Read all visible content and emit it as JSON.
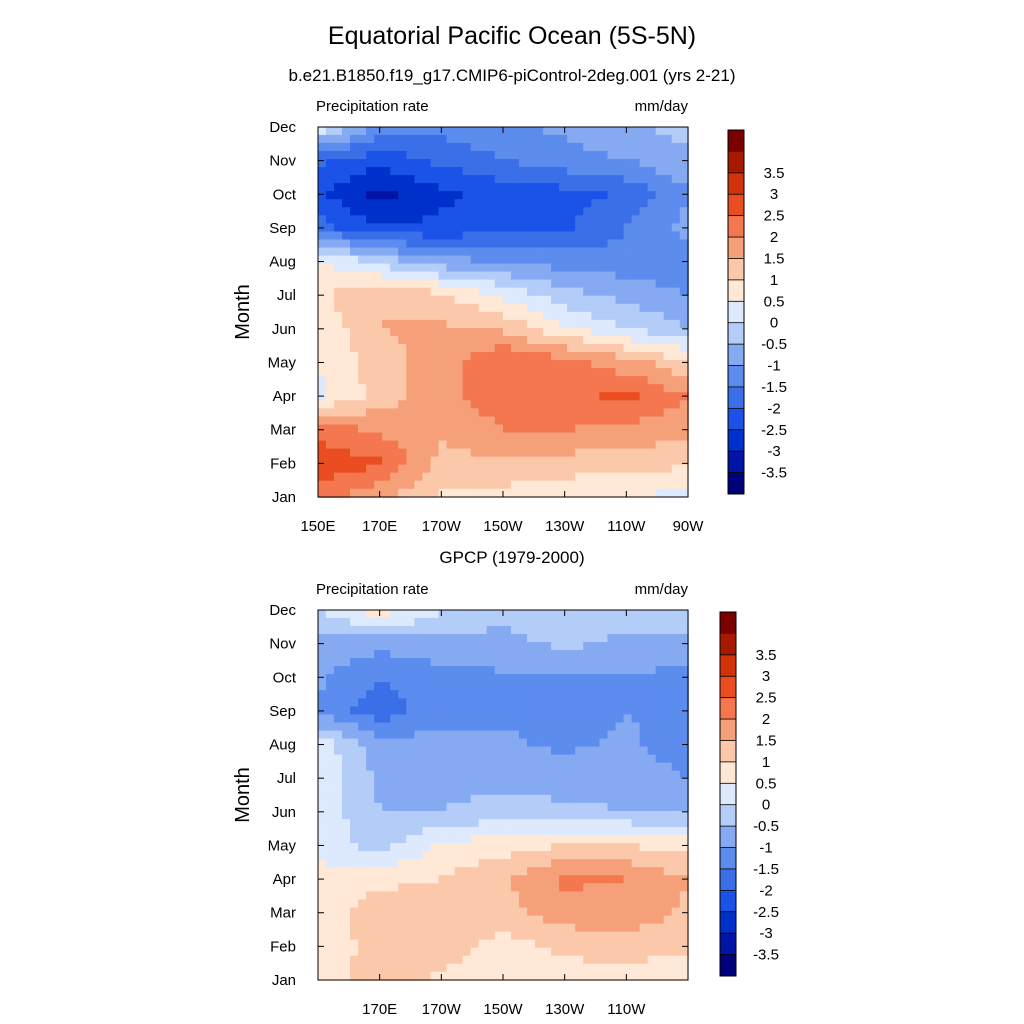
{
  "figure": {
    "title": "Equatorial Pacific Ocean (5S-5N)"
  },
  "chart_data": [
    {
      "type": "heatmap",
      "title": "b.e21.B1850.f19_g17.CMIP6-piControl-2deg.001 (yrs 2-21)",
      "left_label": "Precipitation rate",
      "right_label": "mm/day",
      "ylabel": "Month",
      "xlabel": "",
      "x_ticks": [
        "150E",
        "170E",
        "170W",
        "150W",
        "130W",
        "110W",
        "90W"
      ],
      "y_ticks": [
        "Jan",
        "Feb",
        "Mar",
        "Apr",
        "May",
        "Jun",
        "Jul",
        "Aug",
        "Sep",
        "Oct",
        "Nov",
        "Dec"
      ],
      "x_range": [
        150,
        270
      ],
      "colorbar": {
        "labels": [
          "-3.5",
          "-3",
          "-2.5",
          "-2",
          "-1.5",
          "-1",
          "-0.5",
          "0",
          "0.5",
          "1",
          "1.5",
          "2",
          "2.5",
          "3",
          "3.5"
        ],
        "levels": [
          -3.5,
          -3,
          -2.5,
          -2,
          -1.5,
          -1,
          -0.5,
          0,
          0.5,
          1,
          1.5,
          2,
          2.5,
          3,
          3.5
        ],
        "colors": [
          "#00007a",
          "#0015a5",
          "#0030cc",
          "#1b52e8",
          "#3a6fe8",
          "#5b8cee",
          "#86aaf2",
          "#b3ccf8",
          "#dde9fc",
          "#ffe8d6",
          "#fbc9aa",
          "#f6a07a",
          "#f4774f",
          "#ea4d20",
          "#d23308",
          "#a81a00",
          "#7a0000"
        ]
      },
      "months": [
        "Jan",
        "Feb",
        "Mar",
        "Apr",
        "May",
        "Jun",
        "Jul",
        "Aug",
        "Sep",
        "Oct",
        "Nov",
        "Dec"
      ],
      "longitudes": [
        150,
        170,
        190,
        210,
        230,
        250,
        270
      ],
      "values": [
        [
          2.3,
          1.6,
          0.9,
          0.8,
          0.6,
          0.5,
          0.3
        ],
        [
          2.8,
          2.6,
          1.3,
          1.4,
          1.3,
          1.2,
          1.1
        ],
        [
          2.3,
          1.9,
          1.6,
          2.0,
          2.0,
          1.9,
          1.6
        ],
        [
          0.4,
          1.2,
          1.8,
          2.3,
          2.4,
          2.6,
          2.0
        ],
        [
          0.5,
          1.3,
          1.7,
          2.5,
          2.2,
          1.7,
          1.1
        ],
        [
          0.6,
          1.5,
          1.6,
          1.4,
          0.6,
          0.0,
          -0.5
        ],
        [
          0.9,
          1.5,
          1.1,
          0.4,
          -0.3,
          -0.7,
          -1.0
        ],
        [
          0.6,
          -0.2,
          -0.8,
          -1.1,
          -1.2,
          -1.3,
          -1.4
        ],
        [
          -1.8,
          -2.4,
          -2.4,
          -2.2,
          -2.1,
          -1.5,
          -0.8
        ],
        [
          -2.4,
          -3.2,
          -2.6,
          -2.3,
          -2.2,
          -1.9,
          -1.1
        ],
        [
          -1.9,
          -2.3,
          -1.9,
          -1.5,
          -1.2,
          -1.0,
          -0.6
        ],
        [
          0.4,
          -1.3,
          -1.3,
          -1.1,
          -0.9,
          -0.6,
          -0.3
        ]
      ]
    },
    {
      "type": "heatmap",
      "title": "GPCP (1979-2000)",
      "left_label": "Precipitation rate",
      "right_label": "mm/day",
      "ylabel": "Month",
      "xlabel": "",
      "x_ticks": [
        "170E",
        "170W",
        "150W",
        "130W",
        "110W"
      ],
      "y_ticks": [
        "Jan",
        "Feb",
        "Mar",
        "Apr",
        "May",
        "Jun",
        "Jul",
        "Aug",
        "Sep",
        "Oct",
        "Nov",
        "Dec"
      ],
      "x_range": [
        150,
        270
      ],
      "colorbar": {
        "labels": [
          "-3.5",
          "-3",
          "-2.5",
          "-2",
          "-1.5",
          "-1",
          "-0.5",
          "0",
          "0.5",
          "1",
          "1.5",
          "2",
          "2.5",
          "3",
          "3.5"
        ],
        "levels": [
          -3.5,
          -3,
          -2.5,
          -2,
          -1.5,
          -1,
          -0.5,
          0,
          0.5,
          1,
          1.5,
          2,
          2.5,
          3,
          3.5
        ],
        "colors": [
          "#00007a",
          "#0015a5",
          "#0030cc",
          "#1b52e8",
          "#3a6fe8",
          "#5b8cee",
          "#86aaf2",
          "#b3ccf8",
          "#dde9fc",
          "#ffe8d6",
          "#fbc9aa",
          "#f6a07a",
          "#f4774f",
          "#ea4d20",
          "#d23308",
          "#a81a00",
          "#7a0000"
        ]
      },
      "months": [
        "Jan",
        "Feb",
        "Mar",
        "Apr",
        "May",
        "Jun",
        "Jul",
        "Aug",
        "Sep",
        "Oct",
        "Nov",
        "Dec"
      ],
      "longitudes": [
        150,
        170,
        190,
        210,
        230,
        250,
        270
      ],
      "values": [
        [
          0.5,
          1.4,
          0.9,
          0.7,
          0.8,
          0.7,
          0.6
        ],
        [
          0.7,
          1.2,
          1.3,
          0.8,
          1.1,
          1.3,
          1.1
        ],
        [
          0.8,
          1.2,
          1.3,
          1.3,
          1.8,
          1.8,
          1.4
        ],
        [
          0.7,
          0.9,
          1.0,
          1.4,
          2.1,
          2.0,
          1.5
        ],
        [
          0.3,
          -0.2,
          0.6,
          0.8,
          1.0,
          1.0,
          0.8
        ],
        [
          0.4,
          -0.5,
          -0.5,
          -0.3,
          -0.4,
          -0.5,
          -0.6
        ],
        [
          0.5,
          -0.6,
          -0.6,
          -0.7,
          -0.7,
          -0.7,
          -1.0
        ],
        [
          0.3,
          -0.8,
          -0.8,
          -0.9,
          -1.1,
          -0.9,
          -1.3
        ],
        [
          -1.1,
          -1.8,
          -1.2,
          -1.1,
          -1.3,
          -1.0,
          -1.2
        ],
        [
          -0.9,
          -1.5,
          -1.1,
          -1.1,
          -1.1,
          -1.0,
          -1.2
        ],
        [
          -0.7,
          -0.8,
          -0.8,
          -0.6,
          -0.4,
          -0.6,
          -0.6
        ],
        [
          0.0,
          0.8,
          0.1,
          -0.4,
          -0.3,
          -0.3,
          -0.3
        ]
      ]
    }
  ]
}
